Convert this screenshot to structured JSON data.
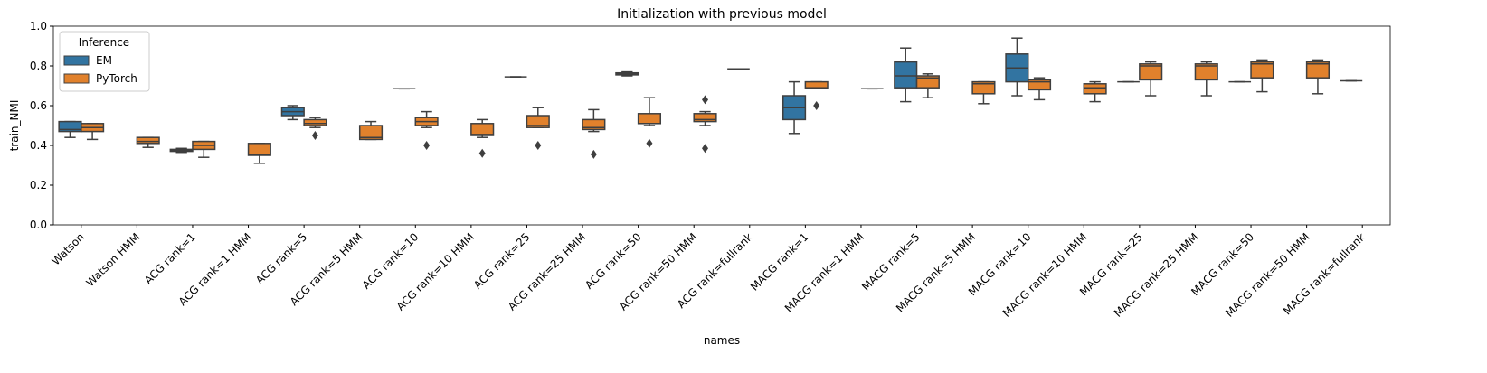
{
  "chart_data": {
    "type": "boxplot",
    "title": "Initialization with previous model",
    "x_label": "names",
    "y_label": "train_NMI",
    "categories": [
      "Watson",
      "Watson HMM",
      "ACG rank=1",
      "ACG rank=1 HMM",
      "ACG rank=5",
      "ACG rank=5 HMM",
      "ACG rank=10",
      "ACG rank=10 HMM",
      "ACG rank=25",
      "ACG rank=25 HMM",
      "ACG rank=50",
      "ACG rank=50 HMM",
      "ACG rank=fullrank",
      "MACG rank=1",
      "MACG rank=1 HMM",
      "MACG rank=5",
      "MACG rank=5 HMM",
      "MACG rank=10",
      "MACG rank=10 HMM",
      "MACG rank=25",
      "MACG rank=25 HMM",
      "MACG rank=50",
      "MACG rank=50 HMM",
      "MACG rank=fullrank"
    ],
    "legend_title": "Inference",
    "legend_position": "upper left",
    "edge_color": "#3f3f3f",
    "ylim": [
      0,
      1
    ],
    "yticks": [
      {
        "value": 0,
        "label": "0.0"
      },
      {
        "value": 0.2,
        "label": "0.2"
      },
      {
        "value": 0.4,
        "label": "0.4"
      },
      {
        "value": 0.6,
        "label": "0.6"
      },
      {
        "value": 0.8,
        "label": "0.8"
      },
      {
        "value": 1,
        "label": "1.0"
      }
    ],
    "series": [
      {
        "name": "EM",
        "color": "#3274a1",
        "values": [
          {
            "min": 0.44,
            "q1": 0.47,
            "median": 0.48,
            "q3": 0.52,
            "max": 0.52,
            "outliers": []
          },
          null,
          {
            "min": 0.365,
            "q1": 0.37,
            "median": 0.375,
            "q3": 0.38,
            "max": 0.385,
            "outliers": []
          },
          null,
          {
            "min": 0.53,
            "q1": 0.55,
            "median": 0.57,
            "q3": 0.59,
            "max": 0.6,
            "outliers": []
          },
          null,
          {
            "min": 0.685,
            "q1": 0.685,
            "median": 0.685,
            "q3": 0.685,
            "max": 0.685,
            "outliers": []
          },
          null,
          {
            "min": 0.745,
            "q1": 0.745,
            "median": 0.745,
            "q3": 0.745,
            "max": 0.745,
            "outliers": []
          },
          null,
          {
            "min": 0.75,
            "q1": 0.755,
            "median": 0.76,
            "q3": 0.765,
            "max": 0.77,
            "outliers": []
          },
          null,
          {
            "min": 0.785,
            "q1": 0.785,
            "median": 0.785,
            "q3": 0.785,
            "max": 0.785,
            "outliers": []
          },
          {
            "min": 0.46,
            "q1": 0.53,
            "median": 0.59,
            "q3": 0.65,
            "max": 0.72,
            "outliers": []
          },
          null,
          {
            "min": 0.62,
            "q1": 0.69,
            "median": 0.75,
            "q3": 0.82,
            "max": 0.89,
            "outliers": []
          },
          null,
          {
            "min": 0.65,
            "q1": 0.72,
            "median": 0.79,
            "q3": 0.86,
            "max": 0.94,
            "outliers": []
          },
          null,
          {
            "min": 0.72,
            "q1": 0.72,
            "median": 0.72,
            "q3": 0.72,
            "max": 0.72,
            "outliers": []
          },
          null,
          {
            "min": 0.72,
            "q1": 0.72,
            "median": 0.72,
            "q3": 0.72,
            "max": 0.72,
            "outliers": []
          },
          null,
          {
            "min": 0.725,
            "q1": 0.725,
            "median": 0.725,
            "q3": 0.725,
            "max": 0.725,
            "outliers": []
          }
        ]
      },
      {
        "name": "PyTorch",
        "color": "#e1812c",
        "values": [
          {
            "min": 0.43,
            "q1": 0.47,
            "median": 0.49,
            "q3": 0.51,
            "max": 0.51,
            "outliers": []
          },
          {
            "min": 0.39,
            "q1": 0.41,
            "median": 0.42,
            "q3": 0.44,
            "max": 0.44,
            "outliers": []
          },
          {
            "min": 0.34,
            "q1": 0.38,
            "median": 0.4,
            "q3": 0.42,
            "max": 0.42,
            "outliers": []
          },
          {
            "min": 0.31,
            "q1": 0.35,
            "median": 0.355,
            "q3": 0.41,
            "max": 0.41,
            "outliers": []
          },
          {
            "min": 0.49,
            "q1": 0.5,
            "median": 0.51,
            "q3": 0.53,
            "max": 0.54,
            "outliers": [
              0.45
            ]
          },
          {
            "min": 0.43,
            "q1": 0.43,
            "median": 0.44,
            "q3": 0.5,
            "max": 0.52,
            "outliers": []
          },
          {
            "min": 0.49,
            "q1": 0.5,
            "median": 0.52,
            "q3": 0.54,
            "max": 0.57,
            "outliers": [
              0.4
            ]
          },
          {
            "min": 0.44,
            "q1": 0.45,
            "median": 0.455,
            "q3": 0.51,
            "max": 0.53,
            "outliers": [
              0.36
            ]
          },
          {
            "min": 0.49,
            "q1": 0.49,
            "median": 0.5,
            "q3": 0.55,
            "max": 0.59,
            "outliers": [
              0.4
            ]
          },
          {
            "min": 0.47,
            "q1": 0.48,
            "median": 0.49,
            "q3": 0.53,
            "max": 0.58,
            "outliers": [
              0.355
            ]
          },
          {
            "min": 0.5,
            "q1": 0.51,
            "median": 0.51,
            "q3": 0.56,
            "max": 0.64,
            "outliers": [
              0.41
            ]
          },
          {
            "min": 0.5,
            "q1": 0.52,
            "median": 0.53,
            "q3": 0.56,
            "max": 0.57,
            "outliers": [
              0.63,
              0.385
            ]
          },
          null,
          {
            "min": 0.69,
            "q1": 0.69,
            "median": 0.69,
            "q3": 0.72,
            "max": 0.72,
            "outliers": [
              0.6
            ]
          },
          {
            "min": 0.685,
            "q1": 0.685,
            "median": 0.685,
            "q3": 0.685,
            "max": 0.685,
            "outliers": []
          },
          {
            "min": 0.64,
            "q1": 0.69,
            "median": 0.74,
            "q3": 0.75,
            "max": 0.76,
            "outliers": []
          },
          {
            "min": 0.61,
            "q1": 0.66,
            "median": 0.71,
            "q3": 0.72,
            "max": 0.72,
            "outliers": []
          },
          {
            "min": 0.63,
            "q1": 0.68,
            "median": 0.72,
            "q3": 0.73,
            "max": 0.74,
            "outliers": []
          },
          {
            "min": 0.62,
            "q1": 0.66,
            "median": 0.69,
            "q3": 0.71,
            "max": 0.72,
            "outliers": []
          },
          {
            "min": 0.65,
            "q1": 0.73,
            "median": 0.8,
            "q3": 0.81,
            "max": 0.82,
            "outliers": []
          },
          {
            "min": 0.65,
            "q1": 0.73,
            "median": 0.8,
            "q3": 0.81,
            "max": 0.82,
            "outliers": []
          },
          {
            "min": 0.67,
            "q1": 0.74,
            "median": 0.81,
            "q3": 0.82,
            "max": 0.83,
            "outliers": []
          },
          {
            "min": 0.66,
            "q1": 0.74,
            "median": 0.81,
            "q3": 0.82,
            "max": 0.83,
            "outliers": []
          },
          null
        ]
      }
    ]
  }
}
